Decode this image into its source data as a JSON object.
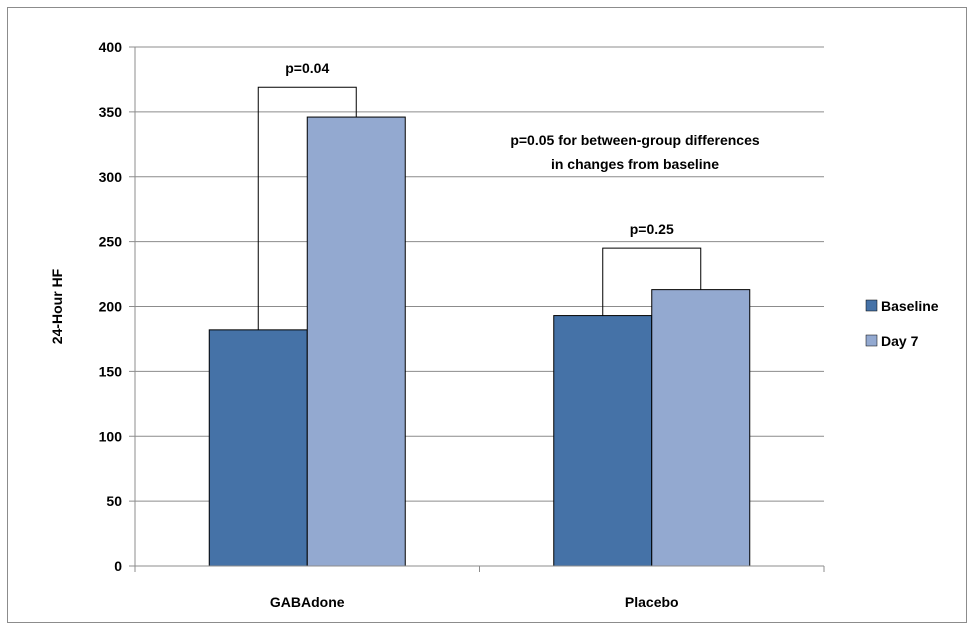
{
  "chart_data": {
    "type": "bar",
    "title": "",
    "xlabel": "",
    "ylabel": "24-Hour HF",
    "ylim": [
      0,
      400
    ],
    "yticks": [
      0,
      50,
      100,
      150,
      200,
      250,
      300,
      350,
      400
    ],
    "grid": true,
    "legend_position": "right",
    "categories": [
      "GABAdone",
      "Placebo"
    ],
    "series": [
      {
        "name": "Baseline",
        "values": [
          182,
          193
        ],
        "color": "#4572a7"
      },
      {
        "name": "Day 7",
        "values": [
          346,
          213
        ],
        "color": "#93a9d0"
      }
    ],
    "annotations": [
      {
        "text": "p=0.04",
        "category": "GABAdone",
        "bracket_y": 369
      },
      {
        "text": "p=0.25",
        "category": "Placebo",
        "bracket_y": 245
      },
      {
        "text_lines": [
          "p=0.05 for between-group differences",
          "in changes from baseline"
        ]
      }
    ]
  }
}
